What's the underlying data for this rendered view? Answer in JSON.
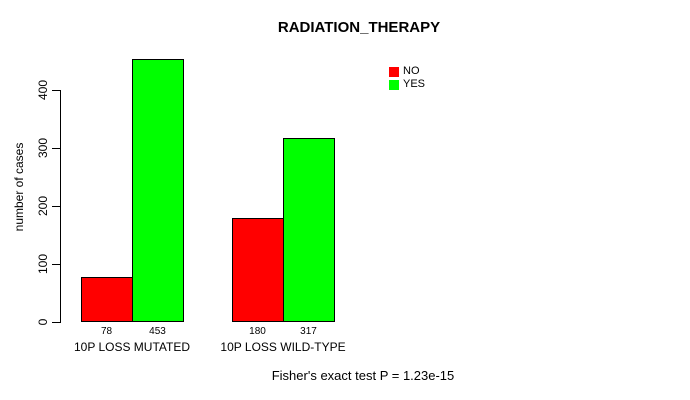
{
  "chart_data": {
    "type": "bar",
    "title": "RADIATION_THERAPY",
    "xlabel": "",
    "ylabel": "number of cases",
    "categories": [
      "10P LOSS MUTATED",
      "10P LOSS WILD-TYPE"
    ],
    "series": [
      {
        "name": "NO",
        "color": "#ff0000",
        "values": [
          78,
          180
        ]
      },
      {
        "name": "YES",
        "color": "#00ff00",
        "values": [
          453,
          317
        ]
      }
    ],
    "yticks": [
      0,
      100,
      200,
      300,
      400
    ],
    "ylim": [
      0,
      465
    ],
    "grid": false,
    "legend_position": "top-right",
    "show_bar_values": true,
    "annotation": "Fisher's exact test P = 1.23e-15"
  },
  "colors": {
    "background": "#ffffff",
    "axis": "#000000",
    "text": "#000000"
  }
}
